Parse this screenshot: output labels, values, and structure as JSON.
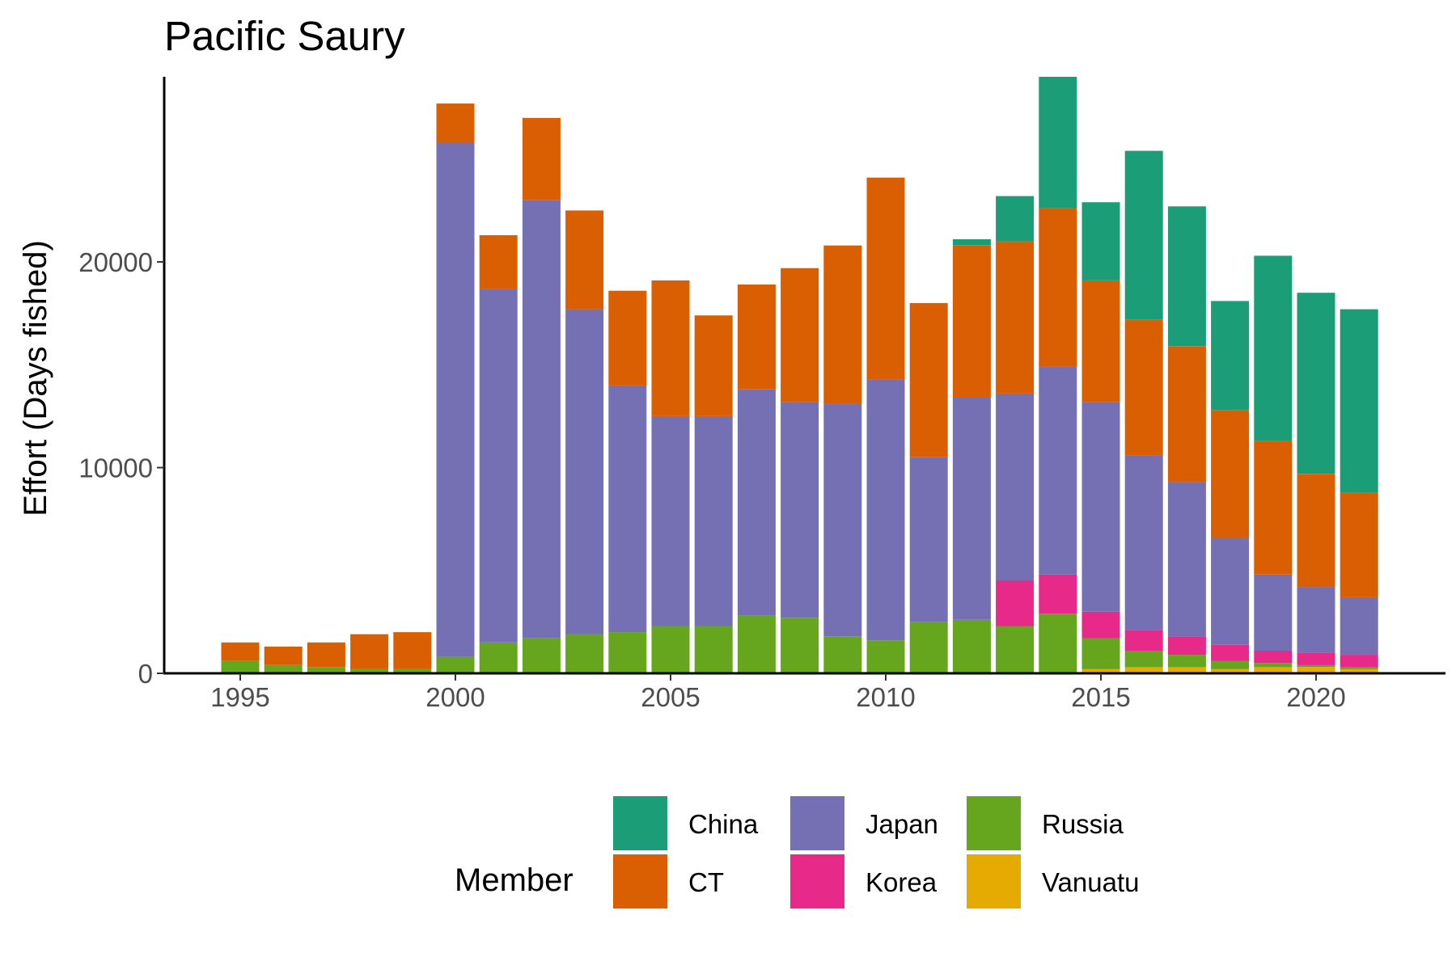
{
  "chart_data": {
    "type": "bar",
    "stacked": true,
    "title": "Pacific Saury",
    "xlabel": "",
    "ylabel": "Effort (Days fished)",
    "categories": [
      1995,
      1996,
      1997,
      1998,
      1999,
      2000,
      2001,
      2002,
      2003,
      2004,
      2005,
      2006,
      2007,
      2008,
      2009,
      2010,
      2011,
      2012,
      2013,
      2014,
      2015,
      2016,
      2017,
      2018,
      2019,
      2020,
      2021
    ],
    "x_ticks": [
      "1995",
      "2000",
      "2005",
      "2010",
      "2015",
      "2020"
    ],
    "y_ticks": [
      "0",
      "10000",
      "20000"
    ],
    "ylim": [
      0,
      29000
    ],
    "xlim": [
      1993.2,
      2022.8
    ],
    "grid": false,
    "legend": {
      "title": "Member",
      "position": "bottom"
    },
    "stack_order": [
      "Vanuatu",
      "Russia",
      "Korea",
      "Japan",
      "CT",
      "China"
    ],
    "series": [
      {
        "name": "China",
        "color": "#1B9E77",
        "values": [
          0,
          0,
          0,
          0,
          0,
          0,
          0,
          0,
          0,
          0,
          0,
          0,
          0,
          0,
          0,
          0,
          0,
          300,
          2200,
          6400,
          3800,
          8200,
          6800,
          5300,
          9000,
          8800,
          8900
        ]
      },
      {
        "name": "CT",
        "color": "#D95F02",
        "values": [
          900,
          900,
          1200,
          1700,
          1800,
          1900,
          2600,
          4000,
          4800,
          4600,
          6600,
          4900,
          5100,
          6500,
          7700,
          9800,
          7500,
          7400,
          7400,
          7700,
          5900,
          6600,
          6600,
          6200,
          6500,
          5500,
          5100
        ]
      },
      {
        "name": "Japan",
        "color": "#7570B3",
        "values": [
          0,
          0,
          0,
          0,
          0,
          25000,
          17200,
          21300,
          15800,
          12000,
          10200,
          10200,
          11000,
          10500,
          11300,
          12700,
          8000,
          10800,
          9100,
          10100,
          10200,
          8500,
          7500,
          5200,
          3700,
          3200,
          2800
        ]
      },
      {
        "name": "Korea",
        "color": "#E7298A",
        "values": [
          0,
          0,
          0,
          0,
          0,
          0,
          0,
          0,
          0,
          0,
          0,
          0,
          0,
          0,
          0,
          0,
          0,
          0,
          2200,
          1900,
          1300,
          1000,
          900,
          800,
          600,
          600,
          600
        ]
      },
      {
        "name": "Russia",
        "color": "#66A61E",
        "values": [
          600,
          400,
          300,
          200,
          200,
          800,
          1500,
          1700,
          1900,
          2000,
          2300,
          2300,
          2800,
          2700,
          1800,
          1600,
          2500,
          2600,
          2300,
          2900,
          1500,
          800,
          600,
          400,
          200,
          100,
          100
        ]
      },
      {
        "name": "Vanuatu",
        "color": "#E6AB02",
        "values": [
          0,
          0,
          0,
          0,
          0,
          0,
          0,
          0,
          0,
          0,
          0,
          0,
          0,
          0,
          0,
          0,
          0,
          0,
          0,
          0,
          200,
          300,
          300,
          200,
          300,
          300,
          200
        ]
      }
    ]
  }
}
